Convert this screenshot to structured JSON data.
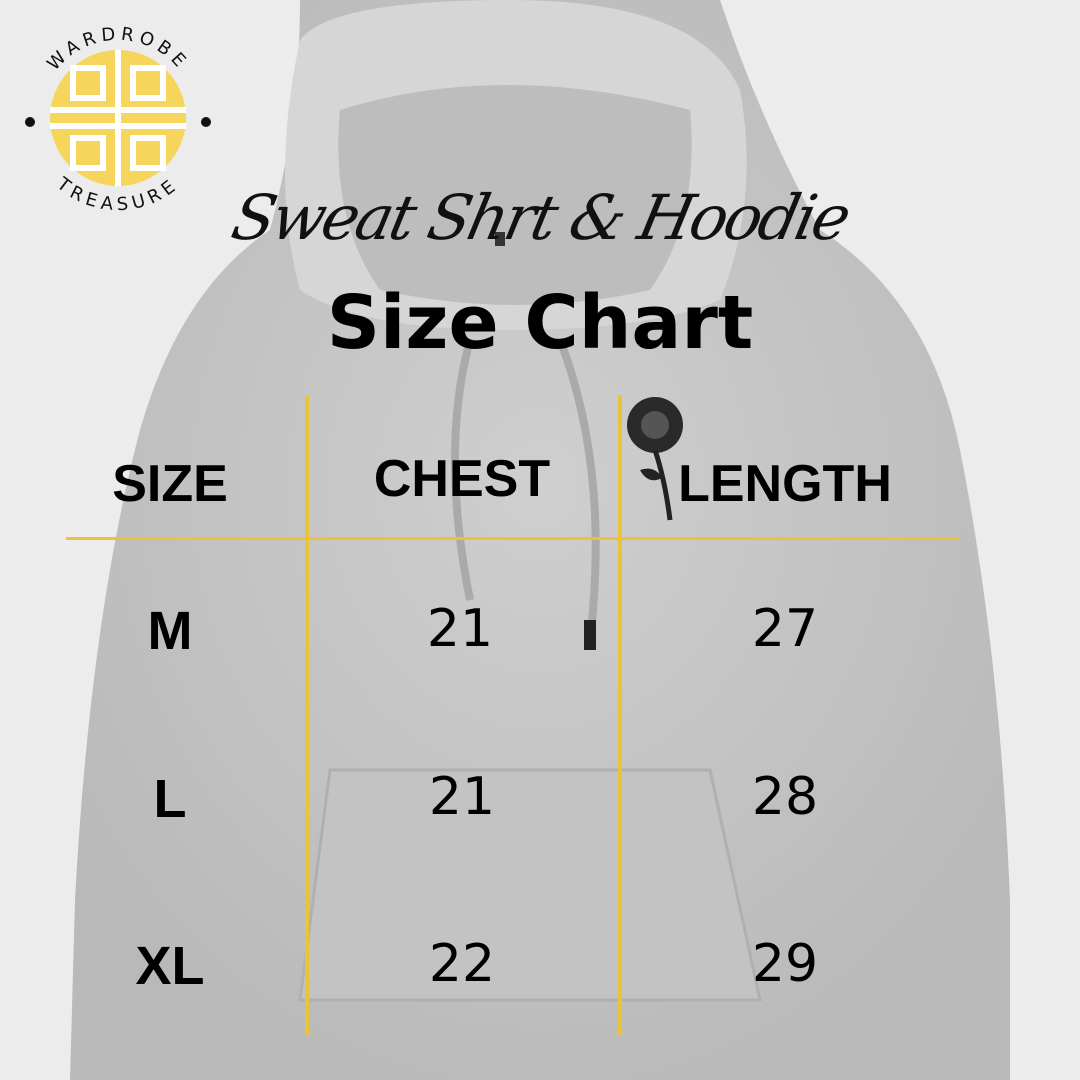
{
  "brand": {
    "logo_top_text": "WARDROBE",
    "logo_bottom_text": "TREASURE",
    "logo_color": "#f6d55c"
  },
  "header": {
    "script_title": "Sweat Shrt & Hoodie",
    "title": "Size Chart"
  },
  "colors": {
    "accent": "#e9c43a",
    "hoodie": "#c9c9c9",
    "background": "#ececec"
  },
  "table": {
    "columns": [
      "SIZE",
      "CHEST",
      "LENGTH"
    ],
    "rows": [
      {
        "size": "M",
        "chest": "21",
        "length": "27"
      },
      {
        "size": "L",
        "chest": "21",
        "length": "28"
      },
      {
        "size": "XL",
        "chest": "22",
        "length": "29"
      }
    ]
  }
}
